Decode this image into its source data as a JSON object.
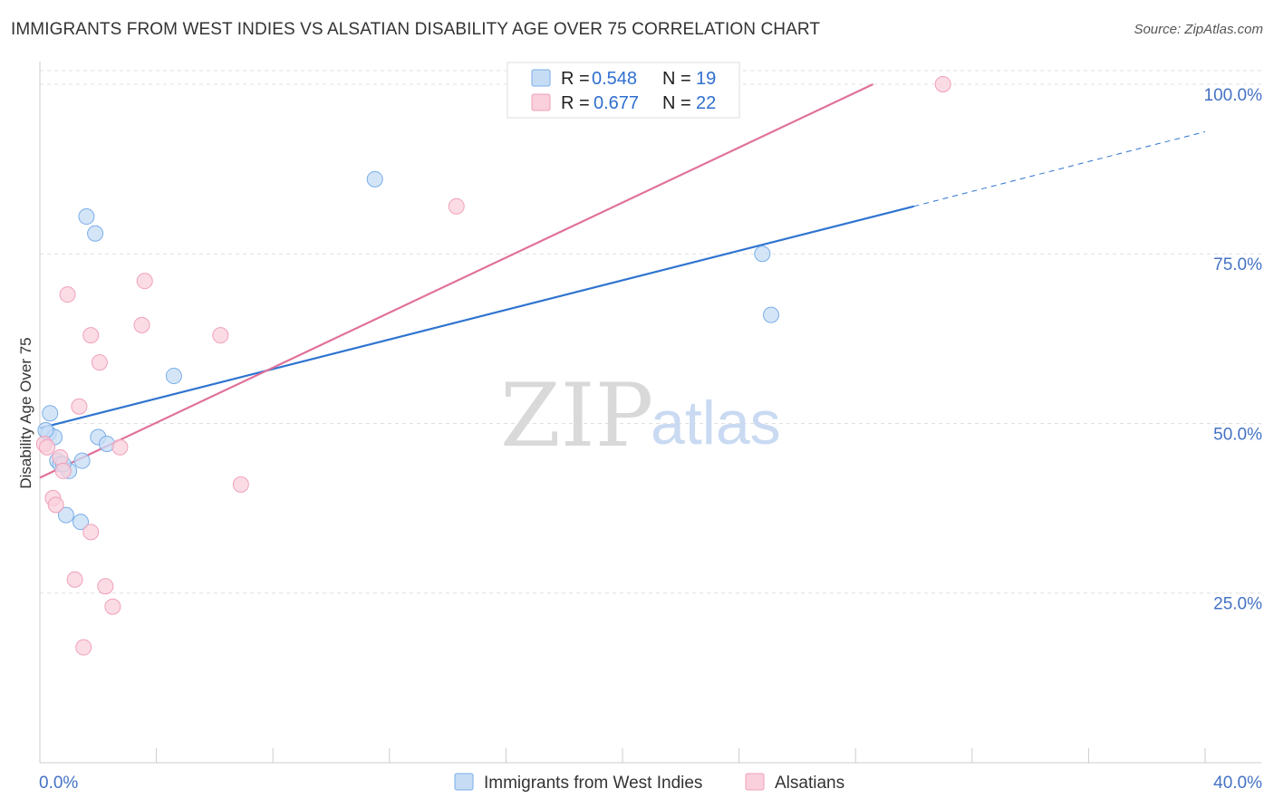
{
  "title": "IMMIGRANTS FROM WEST INDIES VS ALSATIAN DISABILITY AGE OVER 75 CORRELATION CHART",
  "source": "Source: ZipAtlas.com",
  "watermark": {
    "zip": "ZIP",
    "atlas": "atlas"
  },
  "chart_data": {
    "type": "scatter",
    "title": "IMMIGRANTS FROM WEST INDIES VS ALSATIAN DISABILITY AGE OVER 75 CORRELATION CHART",
    "xlabel": "",
    "ylabel": "Disability Age Over 75",
    "xlim": [
      0,
      40
    ],
    "ylim": [
      0,
      102
    ],
    "x_tick_labels": [
      "0.0%",
      "40.0%"
    ],
    "y_ticks": [
      25,
      50,
      75,
      100
    ],
    "y_tick_labels": [
      "25.0%",
      "50.0%",
      "75.0%",
      "100.0%"
    ],
    "grid": true,
    "legend": [
      {
        "r_label": "R = ",
        "r_value": "0.548",
        "n_label": "N = ",
        "n_value": "19"
      },
      {
        "r_label": "R = ",
        "r_value": "0.677",
        "n_label": "N = ",
        "n_value": "22"
      }
    ],
    "series": [
      {
        "name": "Immigrants from West Indies",
        "color": "#7aaee8",
        "fill": "#c6dcf5",
        "line_color": "#2f74d0",
        "points": [
          [
            0.3,
            48.5
          ],
          [
            0.35,
            51.5
          ],
          [
            0.5,
            48.0
          ],
          [
            0.6,
            44.5
          ],
          [
            0.7,
            44.0
          ],
          [
            0.9,
            36.5
          ],
          [
            1.0,
            43.0
          ],
          [
            1.4,
            35.5
          ],
          [
            1.45,
            44.5
          ],
          [
            1.6,
            80.5
          ],
          [
            1.9,
            78.0
          ],
          [
            2.0,
            48.0
          ],
          [
            2.3,
            47.0
          ],
          [
            4.6,
            57.0
          ],
          [
            11.5,
            86.0
          ],
          [
            24.8,
            75.0
          ],
          [
            25.1,
            66.0
          ],
          [
            0.2,
            49.0
          ],
          [
            0.8,
            44.0
          ]
        ],
        "trend": {
          "x": [
            0,
            30
          ],
          "y": [
            49.3,
            82.0
          ]
        },
        "trend_dashed": {
          "x": [
            30,
            40
          ],
          "y": [
            82.0,
            93.0
          ]
        }
      },
      {
        "name": "Alsatians",
        "color": "#f0a0ba",
        "fill": "#f9d0dc",
        "line_color": "#e0709a",
        "points": [
          [
            0.15,
            47.0
          ],
          [
            0.25,
            46.5
          ],
          [
            0.45,
            39.0
          ],
          [
            0.55,
            38.0
          ],
          [
            0.7,
            45.0
          ],
          [
            0.8,
            43.0
          ],
          [
            0.95,
            69.0
          ],
          [
            1.2,
            27.0
          ],
          [
            1.35,
            52.5
          ],
          [
            1.5,
            17.0
          ],
          [
            1.75,
            63.0
          ],
          [
            1.75,
            34.0
          ],
          [
            2.05,
            59.0
          ],
          [
            2.25,
            26.0
          ],
          [
            2.5,
            23.0
          ],
          [
            2.75,
            46.5
          ],
          [
            3.5,
            64.5
          ],
          [
            3.6,
            71.0
          ],
          [
            6.2,
            63.0
          ],
          [
            6.9,
            41.0
          ],
          [
            14.3,
            82.0
          ],
          [
            31.0,
            100.0
          ]
        ],
        "trend": {
          "x": [
            0,
            28.6
          ],
          "y": [
            42.0,
            100.0
          ]
        }
      }
    ]
  }
}
